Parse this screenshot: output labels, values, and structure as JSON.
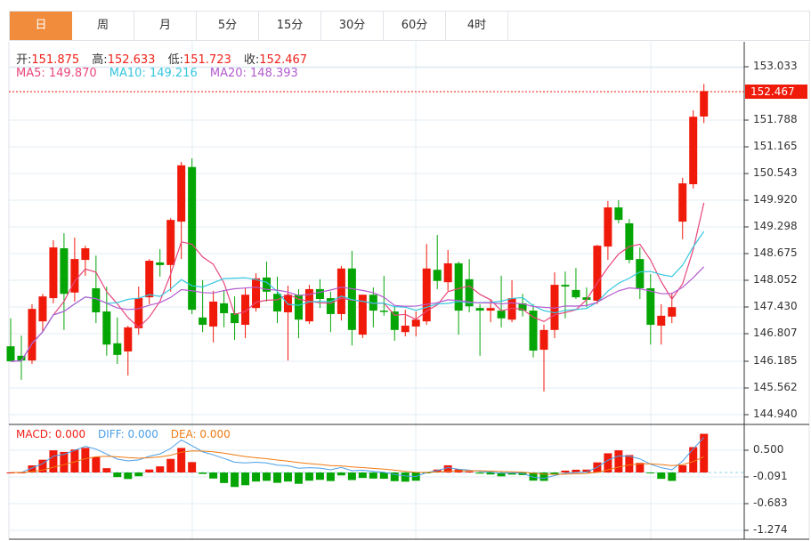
{
  "tabs": [
    {
      "label": "日",
      "active": true
    },
    {
      "label": "周"
    },
    {
      "label": "月"
    },
    {
      "label": "5分"
    },
    {
      "label": "15分"
    },
    {
      "label": "30分"
    },
    {
      "label": "60分"
    },
    {
      "label": "4时"
    }
  ],
  "ohlc_info": {
    "open_label": "开:",
    "open": "151.875",
    "high_label": "高:",
    "high": "152.633",
    "low_label": "低:",
    "low": "151.723",
    "close_label": "收:",
    "close": "152.467"
  },
  "ma_info": {
    "ma5": "MA5: 149.870",
    "ma10": "MA10: 149.216",
    "ma20": "MA20: 148.393"
  },
  "macd_info": {
    "macd": "MACD: 0.000",
    "diff": "DIFF: 0.000",
    "dea": "DEA: 0.000"
  },
  "price_axis": [
    "153.033",
    "151.788",
    "151.165",
    "150.543",
    "149.920",
    "149.298",
    "148.675",
    "148.052",
    "147.430",
    "146.807",
    "146.185",
    "145.562",
    "144.940"
  ],
  "macd_axis": [
    "0.500",
    "-0.091",
    "-0.683",
    "-1.274"
  ],
  "last_price": "152.467",
  "colors": {
    "up": "#f01a0a",
    "down": "#05a505",
    "ma5": "#e8467c",
    "ma10": "#36c7de",
    "ma20": "#b45ccf",
    "diff": "#4a9ee8",
    "dea": "#f07a12",
    "active_tab": "#f08c3c"
  },
  "chart_data": {
    "type": "candlestick",
    "y_range": [
      144.94,
      153.033
    ],
    "candles": [
      [
        146.53,
        147.18,
        146.18,
        146.18
      ],
      [
        146.31,
        146.78,
        145.75,
        146.2
      ],
      [
        146.2,
        147.51,
        146.12,
        147.4
      ],
      [
        147.11,
        147.75,
        146.85,
        147.69
      ],
      [
        147.65,
        149.0,
        147.53,
        148.83
      ],
      [
        148.81,
        149.16,
        146.91,
        147.75
      ],
      [
        147.78,
        149.06,
        147.57,
        148.56
      ],
      [
        148.54,
        148.87,
        148.17,
        148.81
      ],
      [
        147.88,
        148.64,
        147.07,
        147.32
      ],
      [
        147.34,
        147.92,
        146.31,
        146.57
      ],
      [
        146.6,
        147.2,
        146.12,
        146.33
      ],
      [
        146.41,
        147.01,
        145.85,
        146.97
      ],
      [
        146.95,
        147.92,
        146.8,
        147.65
      ],
      [
        147.67,
        148.56,
        147.51,
        148.52
      ],
      [
        148.48,
        148.79,
        148.15,
        148.42
      ],
      [
        148.42,
        149.51,
        147.8,
        149.47
      ],
      [
        149.43,
        150.82,
        148.56,
        150.74
      ],
      [
        150.7,
        150.9,
        147.28,
        147.38
      ],
      [
        147.2,
        148.07,
        146.86,
        147.03
      ],
      [
        146.99,
        147.82,
        146.62,
        147.57
      ],
      [
        147.53,
        147.84,
        146.97,
        147.3
      ],
      [
        147.3,
        147.69,
        146.68,
        147.07
      ],
      [
        147.03,
        147.88,
        146.72,
        147.73
      ],
      [
        147.42,
        148.23,
        147.34,
        148.11
      ],
      [
        148.13,
        148.5,
        147.57,
        147.8
      ],
      [
        147.75,
        148.15,
        147.07,
        147.34
      ],
      [
        147.32,
        147.94,
        146.2,
        147.73
      ],
      [
        147.73,
        147.86,
        146.72,
        147.15
      ],
      [
        147.11,
        147.96,
        147.05,
        147.86
      ],
      [
        147.86,
        148.09,
        147.42,
        147.63
      ],
      [
        147.65,
        147.8,
        146.86,
        147.28
      ],
      [
        147.28,
        148.4,
        147.13,
        148.34
      ],
      [
        148.34,
        148.75,
        146.55,
        146.91
      ],
      [
        146.8,
        147.73,
        146.72,
        147.73
      ],
      [
        147.73,
        147.9,
        146.97,
        147.36
      ],
      [
        147.36,
        148.17,
        147.24,
        147.35
      ],
      [
        147.34,
        147.46,
        146.66,
        146.91
      ],
      [
        146.86,
        147.38,
        146.76,
        147.01
      ],
      [
        146.99,
        147.34,
        146.76,
        147.15
      ],
      [
        147.11,
        148.91,
        147.03,
        148.34
      ],
      [
        148.31,
        149.12,
        147.86,
        148.05
      ],
      [
        148.02,
        148.77,
        147.82,
        148.46
      ],
      [
        148.46,
        148.5,
        146.8,
        147.36
      ],
      [
        148.09,
        148.56,
        147.32,
        147.46
      ],
      [
        147.42,
        147.51,
        146.31,
        147.36
      ],
      [
        147.36,
        147.63,
        147.09,
        147.42
      ],
      [
        147.36,
        148.17,
        146.97,
        147.18
      ],
      [
        147.15,
        148.07,
        147.09,
        147.65
      ],
      [
        147.53,
        147.75,
        147.22,
        147.36
      ],
      [
        147.36,
        147.51,
        146.27,
        146.43
      ],
      [
        146.45,
        147.03,
        145.48,
        146.91
      ],
      [
        146.91,
        148.25,
        146.72,
        147.96
      ],
      [
        147.96,
        148.27,
        147.18,
        147.92
      ],
      [
        147.84,
        148.35,
        147.63,
        147.67
      ],
      [
        147.67,
        147.9,
        147.44,
        147.61
      ],
      [
        147.59,
        148.89,
        147.51,
        148.87
      ],
      [
        148.85,
        149.91,
        148.54,
        149.76
      ],
      [
        149.76,
        149.93,
        149.39,
        149.47
      ],
      [
        149.39,
        149.49,
        148.46,
        148.54
      ],
      [
        148.56,
        148.83,
        147.63,
        147.88
      ],
      [
        147.88,
        148.21,
        146.57,
        147.03
      ],
      [
        147.01,
        147.51,
        146.57,
        147.24
      ],
      [
        147.22,
        147.78,
        147.07,
        147.44
      ],
      [
        149.43,
        150.45,
        149.02,
        150.32
      ],
      [
        150.3,
        152.02,
        150.2,
        151.87
      ],
      [
        151.875,
        152.633,
        151.723,
        152.467
      ]
    ],
    "candle_format": [
      "open",
      "high",
      "low",
      "close"
    ],
    "ma_periods": [
      5,
      10,
      20
    ],
    "macd_params": [
      12,
      26,
      9
    ]
  }
}
